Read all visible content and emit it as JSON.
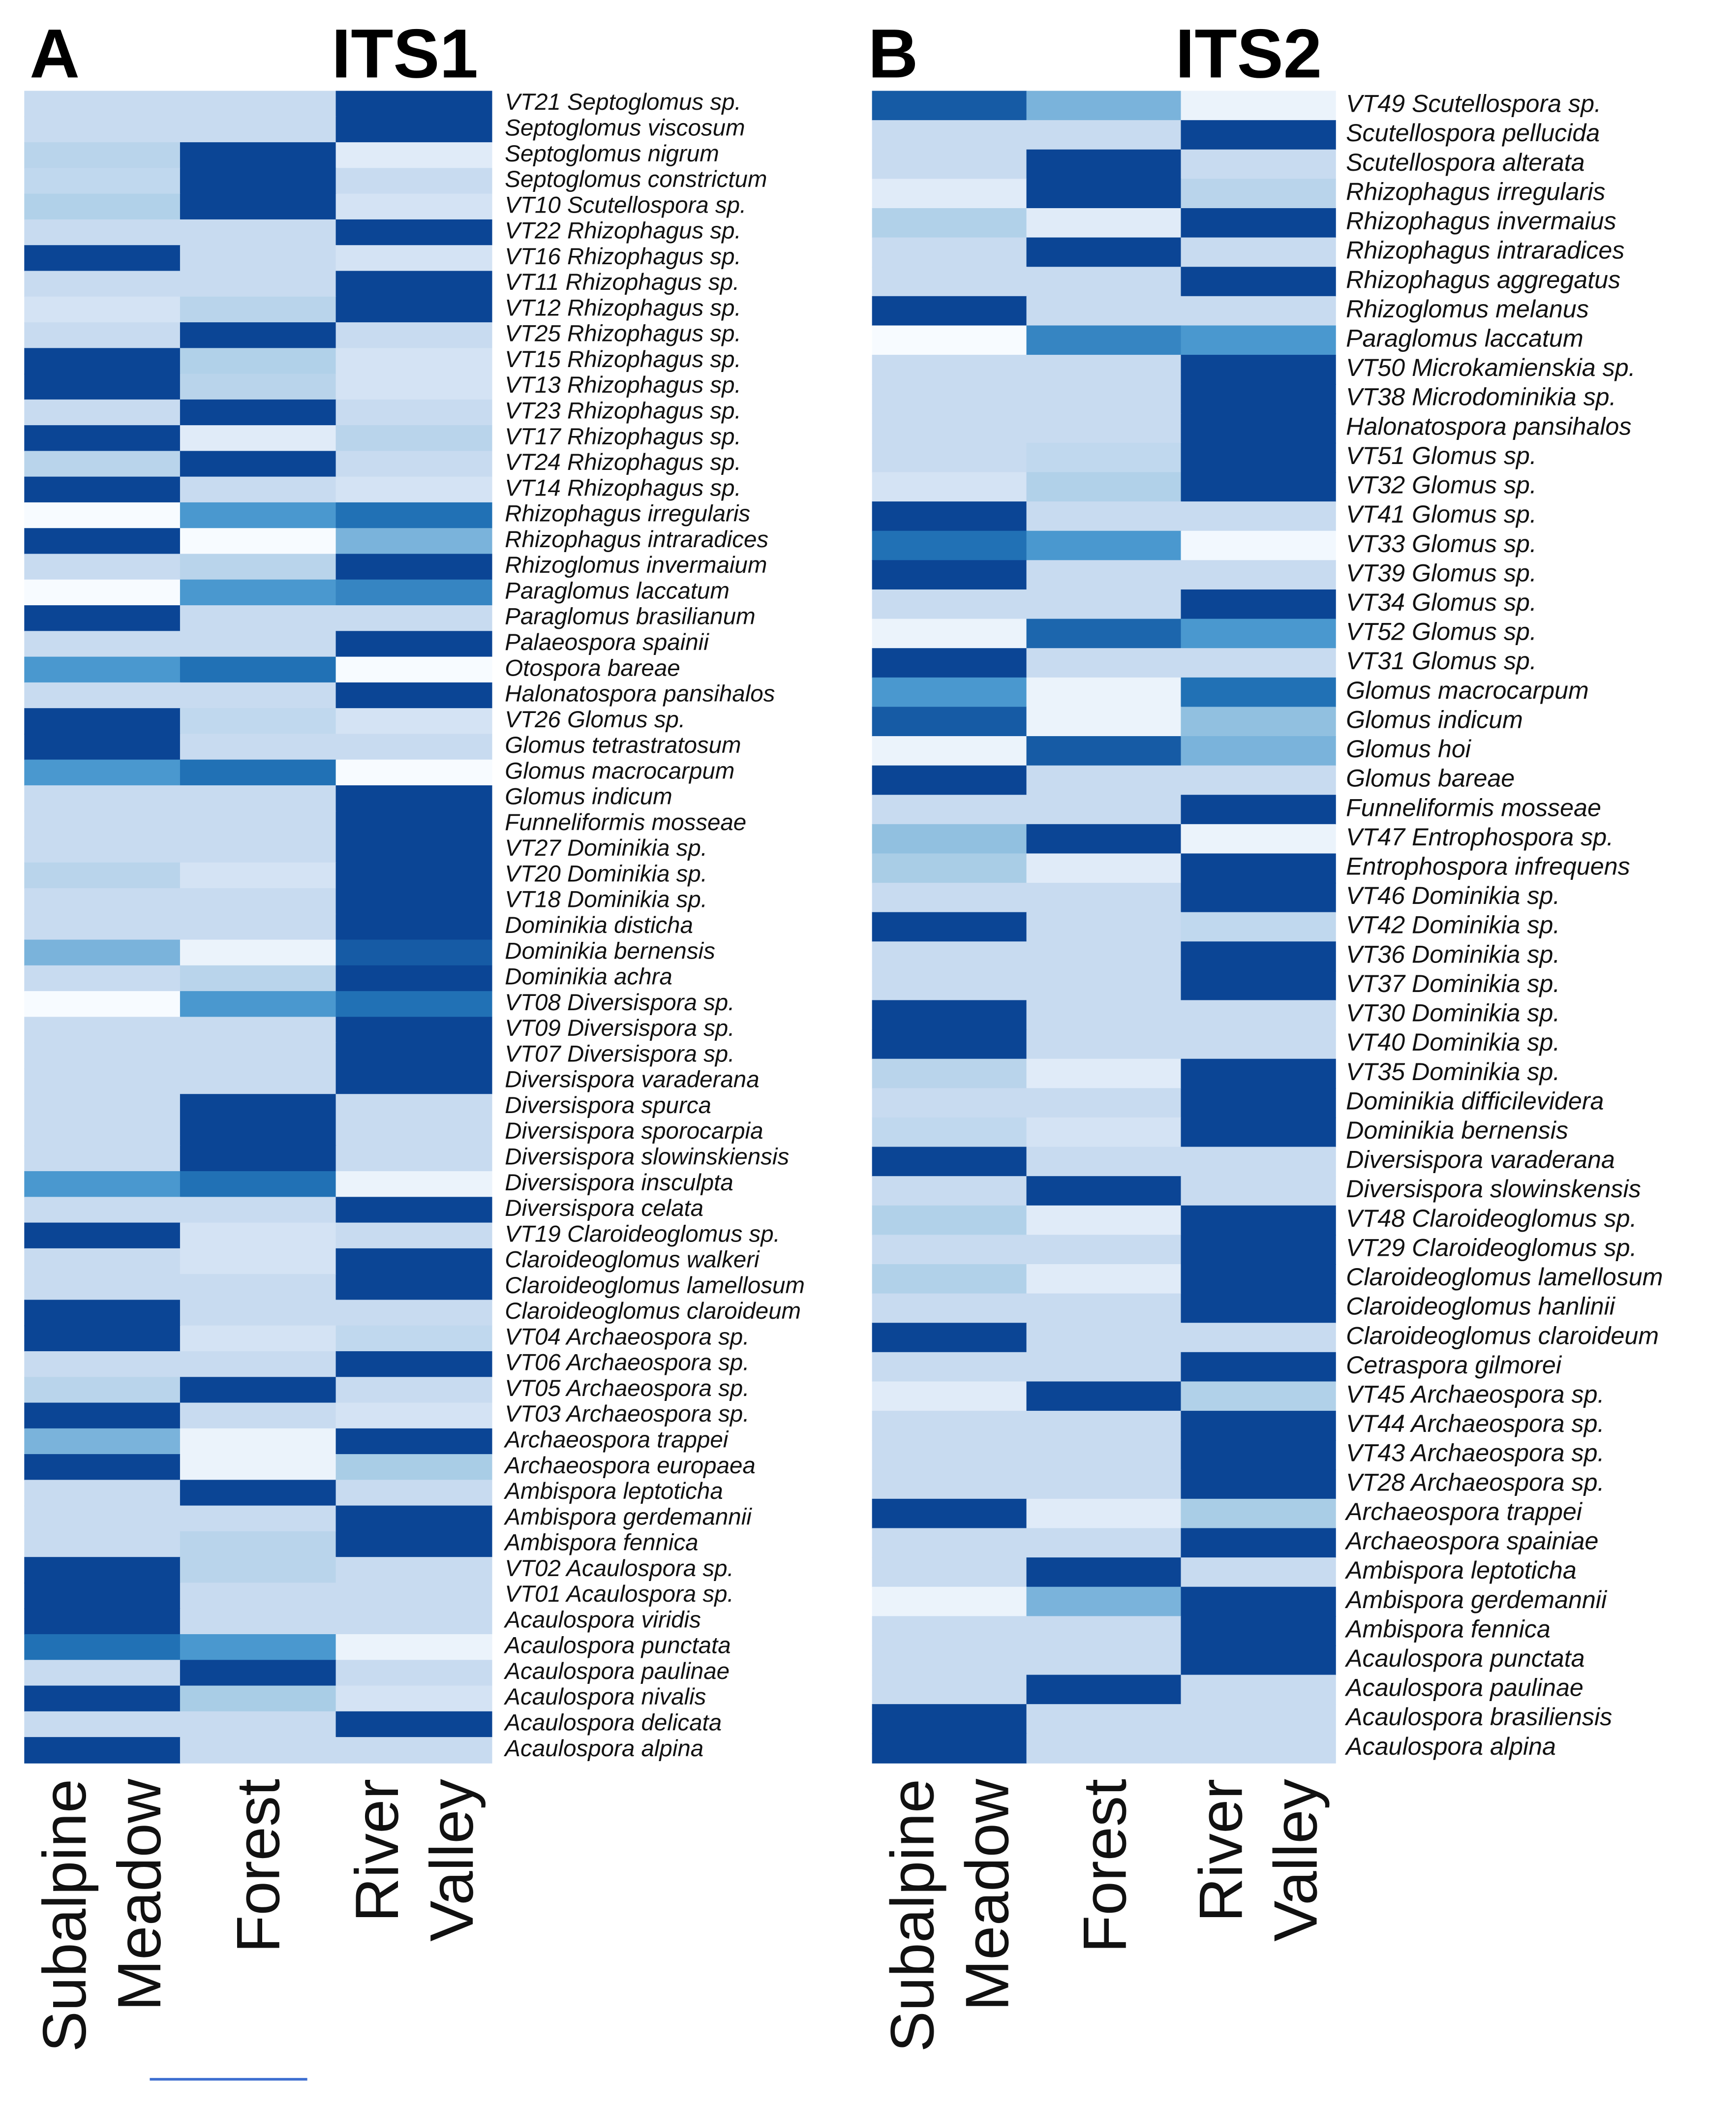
{
  "chart_data": [
    {
      "type": "heatmap",
      "label": "A",
      "title": "ITS1",
      "categories": [
        "Subalpine Meadow",
        "Forest",
        "River Valley"
      ],
      "rows": [
        "VT21 Septoglomus sp.",
        "Septoglomus viscosum",
        "Septoglomus nigrum",
        "Septoglomus constrictum",
        "VT10 Scutellospora sp.",
        "VT22 Rhizophagus sp.",
        "VT16 Rhizophagus sp.",
        "VT11 Rhizophagus sp.",
        "VT12 Rhizophagus sp.",
        "VT25 Rhizophagus sp.",
        "VT15 Rhizophagus sp.",
        "VT13 Rhizophagus sp.",
        "VT23 Rhizophagus sp.",
        "VT17 Rhizophagus sp.",
        "VT24 Rhizophagus sp.",
        "VT14 Rhizophagus sp.",
        "Rhizophagus irregularis",
        "Rhizophagus intraradices",
        "Rhizoglomus invermaium",
        "Paraglomus laccatum",
        "Paraglomus brasilianum",
        "Palaeospora spainii",
        "Otospora bareae",
        "Halonatospora pansihalos",
        "VT26 Glomus sp.",
        "Glomus tetrastratosum",
        "Glomus macrocarpum",
        "Glomus indicum",
        "Funneliformis mosseae",
        "VT27 Dominikia sp.",
        "VT20 Dominikia sp.",
        "VT18 Dominikia sp.",
        "Dominikia disticha",
        "Dominikia bernensis",
        "Dominikia achra",
        "VT08 Diversispora sp.",
        "VT09 Diversispora sp.",
        "VT07 Diversispora sp.",
        "Diversispora varaderana",
        "Diversispora spurca",
        "Diversispora sporocarpia",
        "Diversispora slowinskiensis",
        "Diversispora insculpta",
        "Diversispora celata",
        "VT19 Claroideoglomus sp.",
        "Claroideoglomus walkeri",
        "Claroideoglomus lamellosum",
        "Claroideoglomus claroideum",
        "VT04 Archaeospora sp.",
        "VT06 Archaeospora sp.",
        "VT05 Archaeospora sp.",
        "VT03 Archaeospora sp.",
        "Archaeospora trappei",
        "Archaeospora europaea",
        "Ambispora leptoticha",
        "Ambispora gerdemannii",
        "Ambispora fennica",
        "VT02 Acaulospora sp.",
        "VT01 Acaulospora sp.",
        "Acaulospora viridis",
        "Acaulospora punctata",
        "Acaulospora paulinae",
        "Acaulospora nivalis",
        "Acaulospora delicata",
        "Acaulospora alpina"
      ],
      "values": [
        [
          0.2,
          0.2,
          1
        ],
        [
          0.2,
          0.2,
          1
        ],
        [
          0.3,
          1,
          0.1
        ],
        [
          0.25,
          1,
          0.2
        ],
        [
          0.35,
          1,
          0.15
        ],
        [
          0.2,
          0.2,
          1
        ],
        [
          1,
          0.2,
          0.15
        ],
        [
          0.2,
          0.2,
          1
        ],
        [
          0.15,
          0.3,
          1
        ],
        [
          0.2,
          1,
          0.2
        ],
        [
          1,
          0.35,
          0.15
        ],
        [
          1,
          0.3,
          0.15
        ],
        [
          0.2,
          1,
          0.2
        ],
        [
          1,
          0.1,
          0.3
        ],
        [
          0.3,
          1,
          0.2
        ],
        [
          1,
          0.2,
          0.15
        ],
        [
          0,
          0.6,
          0.8
        ],
        [
          1,
          0,
          0.5
        ],
        [
          0.2,
          0.3,
          1
        ],
        [
          0,
          0.6,
          0.7
        ],
        [
          1,
          0.2,
          0.2
        ],
        [
          0.2,
          0.2,
          1
        ],
        [
          0.6,
          0.8,
          0
        ],
        [
          0.2,
          0.2,
          1
        ],
        [
          1,
          0.25,
          0.15
        ],
        [
          1,
          0.2,
          0.2
        ],
        [
          0.6,
          0.8,
          0
        ],
        [
          0.2,
          0.2,
          1
        ],
        [
          0.2,
          0.2,
          1
        ],
        [
          0.2,
          0.2,
          1
        ],
        [
          0.3,
          0.15,
          1
        ],
        [
          0.2,
          0.2,
          1
        ],
        [
          0.2,
          0.2,
          1
        ],
        [
          0.5,
          0.05,
          0.9
        ],
        [
          0.2,
          0.3,
          1
        ],
        [
          0,
          0.6,
          0.8
        ],
        [
          0.2,
          0.2,
          1
        ],
        [
          0.2,
          0.2,
          1
        ],
        [
          0.2,
          0.2,
          1
        ],
        [
          0.2,
          1,
          0.2
        ],
        [
          0.2,
          1,
          0.2
        ],
        [
          0.2,
          1,
          0.2
        ],
        [
          0.6,
          0.8,
          0.05
        ],
        [
          0.2,
          0.2,
          1
        ],
        [
          1,
          0.15,
          0.2
        ],
        [
          0.2,
          0.15,
          1
        ],
        [
          0.2,
          0.2,
          1
        ],
        [
          1,
          0.2,
          0.2
        ],
        [
          1,
          0.15,
          0.25
        ],
        [
          0.2,
          0.2,
          1
        ],
        [
          0.3,
          1,
          0.2
        ],
        [
          1,
          0.2,
          0.15
        ],
        [
          0.5,
          0.05,
          1
        ],
        [
          1,
          0.05,
          0.4
        ],
        [
          0.2,
          1,
          0.2
        ],
        [
          0.2,
          0.2,
          1
        ],
        [
          0.2,
          0.3,
          1
        ],
        [
          1,
          0.3,
          0.2
        ],
        [
          1,
          0.2,
          0.2
        ],
        [
          1,
          0.2,
          0.2
        ],
        [
          0.8,
          0.6,
          0.05
        ],
        [
          0.2,
          1,
          0.2
        ],
        [
          1,
          0.4,
          0.15
        ],
        [
          0.2,
          0.2,
          1
        ],
        [
          1,
          0.2,
          0.2
        ]
      ],
      "vlim": [
        0,
        1
      ],
      "colormap": [
        "#f7fbff",
        "#c8dbf0",
        "#a9cde6",
        "#4a98cf",
        "#2171b5",
        "#0b4595"
      ]
    },
    {
      "type": "heatmap",
      "label": "B",
      "title": "ITS2",
      "categories": [
        "Subalpine Meadow",
        "Forest",
        "River Valley"
      ],
      "rows": [
        "VT49 Scutellospora sp.",
        "Scutellospora pellucida",
        "Scutellospora alterata",
        "Rhizophagus irregularis",
        "Rhizophagus invermaius",
        "Rhizophagus intraradices",
        "Rhizophagus aggregatus",
        "Rhizoglomus melanus",
        "Paraglomus laccatum",
        "VT50 Microkamienskia sp.",
        "VT38 Microdominikia sp.",
        "Halonatospora pansihalos",
        "VT51 Glomus sp.",
        "VT32 Glomus sp.",
        "VT41 Glomus sp.",
        "VT33 Glomus sp.",
        "VT39 Glomus sp.",
        "VT34 Glomus sp.",
        "VT52 Glomus sp.",
        "VT31 Glomus sp.",
        "Glomus macrocarpum",
        "Glomus indicum",
        "Glomus hoi",
        "Glomus bareae",
        "Funneliformis mosseae",
        "VT47 Entrophospora sp.",
        "Entrophospora infrequens",
        "VT46 Dominikia sp.",
        "VT42 Dominikia sp.",
        "VT36 Dominikia sp.",
        "VT37 Dominikia sp.",
        "VT30 Dominikia sp.",
        "VT40 Dominikia sp.",
        "VT35 Dominikia sp.",
        "Dominikia difficilevidera",
        "Dominikia bernensis",
        "Diversispora varaderana",
        "Diversispora slowinskensis",
        "VT48 Claroideoglomus sp.",
        "VT29 Claroideoglomus sp.",
        "Claroideoglomus lamellosum",
        "Claroideoglomus hanlinii",
        "Claroideoglomus claroideum",
        "Cetraspora gilmorei",
        "VT45 Archaeospora sp.",
        "VT44 Archaeospora sp.",
        "VT43 Archaeospora sp.",
        "VT28 Archaeospora sp.",
        "Archaeospora trappei",
        "Archaeospora spainiae",
        "Ambispora leptoticha",
        "Ambispora gerdemannii",
        "Ambispora fennica",
        "Acaulospora punctata",
        "Acaulospora paulinae",
        "Acaulospora brasiliensis",
        "Acaulospora alpina"
      ],
      "values": [
        [
          0.9,
          0.5,
          0.05
        ],
        [
          0.2,
          0.2,
          1
        ],
        [
          0.2,
          1,
          0.2
        ],
        [
          0.1,
          1,
          0.3
        ],
        [
          0.35,
          0.1,
          1
        ],
        [
          0.2,
          1,
          0.2
        ],
        [
          0.2,
          0.2,
          1
        ],
        [
          1,
          0.2,
          0.2
        ],
        [
          0,
          0.7,
          0.6
        ],
        [
          0.2,
          0.2,
          1
        ],
        [
          0.2,
          0.2,
          1
        ],
        [
          0.2,
          0.2,
          1
        ],
        [
          0.2,
          0.25,
          1
        ],
        [
          0.15,
          0.35,
          1
        ],
        [
          1,
          0.2,
          0.2
        ],
        [
          0.8,
          0.6,
          0.02
        ],
        [
          1,
          0.2,
          0.2
        ],
        [
          0.2,
          0.2,
          1
        ],
        [
          0.05,
          0.85,
          0.6
        ],
        [
          1,
          0.2,
          0.2
        ],
        [
          0.6,
          0.05,
          0.8
        ],
        [
          0.9,
          0.05,
          0.45
        ],
        [
          0.05,
          0.9,
          0.5
        ],
        [
          1,
          0.2,
          0.2
        ],
        [
          0.2,
          0.2,
          1
        ],
        [
          0.45,
          1,
          0.05
        ],
        [
          0.4,
          0.1,
          1
        ],
        [
          0.2,
          0.2,
          1
        ],
        [
          1,
          0.2,
          0.25
        ],
        [
          0.2,
          0.2,
          1
        ],
        [
          0.2,
          0.2,
          1
        ],
        [
          1,
          0.2,
          0.2
        ],
        [
          1,
          0.2,
          0.2
        ],
        [
          0.3,
          0.1,
          1
        ],
        [
          0.2,
          0.2,
          1
        ],
        [
          0.25,
          0.15,
          1
        ],
        [
          1,
          0.2,
          0.2
        ],
        [
          0.2,
          1,
          0.2
        ],
        [
          0.35,
          0.1,
          1
        ],
        [
          0.2,
          0.2,
          1
        ],
        [
          0.35,
          0.1,
          1
        ],
        [
          0.2,
          0.2,
          1
        ],
        [
          1,
          0.2,
          0.2
        ],
        [
          0.2,
          0.2,
          1
        ],
        [
          0.1,
          1,
          0.35
        ],
        [
          0.2,
          0.2,
          1
        ],
        [
          0.2,
          0.2,
          1
        ],
        [
          0.2,
          0.2,
          1
        ],
        [
          1,
          0.1,
          0.4
        ],
        [
          0.2,
          0.2,
          1
        ],
        [
          0.2,
          1,
          0.2
        ],
        [
          0.05,
          0.5,
          1
        ],
        [
          0.2,
          0.2,
          1
        ],
        [
          0.2,
          0.2,
          1
        ],
        [
          0.2,
          1,
          0.2
        ],
        [
          1,
          0.2,
          0.2
        ],
        [
          1,
          0.2,
          0.2
        ]
      ],
      "vlim": [
        0,
        1
      ],
      "colormap": [
        "#f7fbff",
        "#c8dbf0",
        "#a9cde6",
        "#4a98cf",
        "#2171b5",
        "#0b4595"
      ]
    }
  ]
}
